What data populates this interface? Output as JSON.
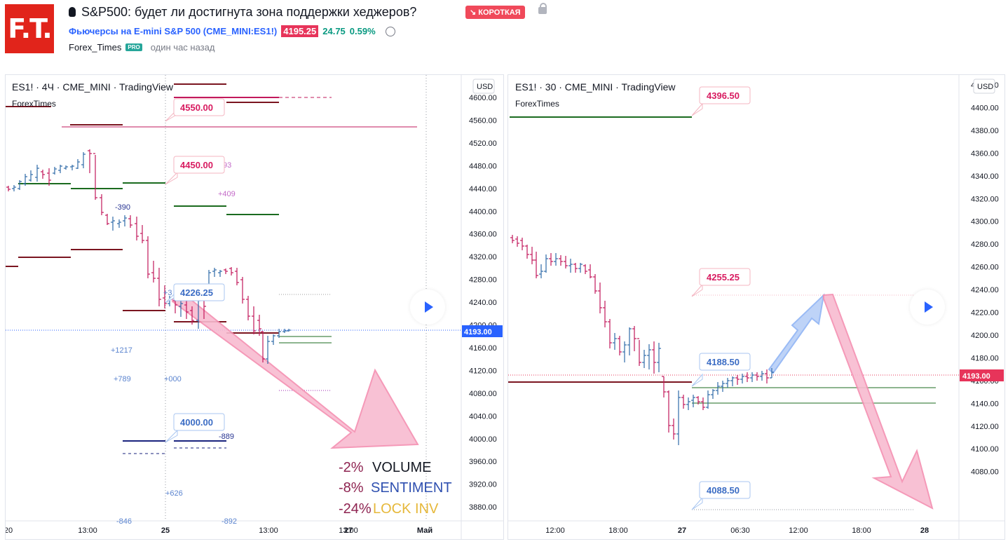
{
  "header": {
    "logo_text": "F.T.",
    "title": "S&P500: будет ли достигнута зона поддержки хеджеров?",
    "direction_badge": "↘ КОРОТКАЯ",
    "symbol_name": "Фьючерсы на E-mini S&P 500 (CME_MINI:ES1!)",
    "price": "4195.25",
    "change": "24.75",
    "change_pct": "0.59%",
    "author": "Forex_Times",
    "author_badge": "PRO",
    "time_ago": "один час назад"
  },
  "colors": {
    "brand": "#e1241b",
    "short": "#f0495a",
    "up": "#089981",
    "price_line": "#2962ff",
    "arrow_pink": "#f48fb1",
    "arrow_blue": "#90b4f5"
  },
  "left_chart": {
    "legend": "ES1! · 4Ч · CME_MINI · TradingView",
    "source": "ForexTimes",
    "currency": "USD",
    "price_axis": [
      "4600.00",
      "4560.00",
      "4520.00",
      "4480.00",
      "4440.00",
      "4400.00",
      "4360.00",
      "4320.00",
      "4280.00",
      "4240.00",
      "4200.00",
      "4160.00",
      "4120.00",
      "4080.00",
      "4040.00",
      "4000.00",
      "3960.00",
      "3920.00",
      "3880.00"
    ],
    "last_price": "4193.00",
    "time_axis": [
      "20",
      "13:00",
      "25",
      "13:00",
      "27",
      "13:00",
      "Май"
    ],
    "callouts": [
      "4550.00",
      "4450.00",
      "4226.25",
      "4000.00"
    ],
    "annotations": [
      "93",
      "+409",
      "-390",
      "+1217",
      "+789",
      "+000",
      "-889",
      "+626",
      "-846",
      "-892",
      "+3"
    ],
    "stats": [
      {
        "pct": "-2%",
        "label": "VOLUME",
        "label_color": "#131722"
      },
      {
        "pct": "-8%",
        "label": "SENTIMENT",
        "label_color": "#2f50b0"
      },
      {
        "pct": "-24%",
        "label": "LOCK INV",
        "label_color": "#e6b83a"
      }
    ]
  },
  "right_chart": {
    "legend": "ES1! · 30 · CME_MINI · TradingView",
    "source": "ForexTimes",
    "currency": "USD",
    "price_axis": [
      "4420.00",
      "4400.00",
      "4380.00",
      "4360.00",
      "4340.00",
      "4320.00",
      "4300.00",
      "4280.00",
      "4260.00",
      "4240.00",
      "4220.00",
      "4200.00",
      "4180.00",
      "4160.00",
      "4140.00",
      "4120.00",
      "4100.00",
      "4080.00"
    ],
    "last_price": "4193.00",
    "time_axis": [
      "12:00",
      "18:00",
      "27",
      "06:30",
      "12:00",
      "18:00",
      "28"
    ],
    "callouts": [
      "4396.50",
      "4255.25",
      "4188.50",
      "4088.50"
    ]
  }
}
